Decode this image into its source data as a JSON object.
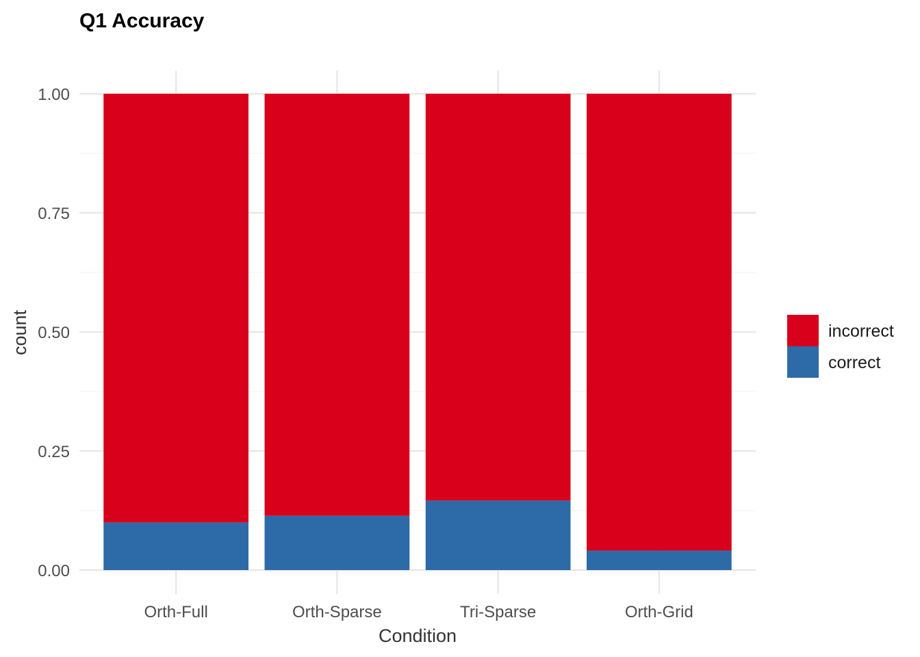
{
  "chart_data": {
    "type": "bar",
    "stacked": true,
    "title": "Q1 Accuracy",
    "xlabel": "Condition",
    "ylabel": "count",
    "categories": [
      "Orth-Full",
      "Orth-Sparse",
      "Tri-Sparse",
      "Orth-Grid"
    ],
    "series": [
      {
        "name": "correct",
        "color": "#2d6aa8",
        "values": [
          0.1,
          0.114,
          0.146,
          0.041
        ]
      },
      {
        "name": "incorrect",
        "color": "#d8001a",
        "values": [
          0.9,
          0.886,
          0.854,
          0.959
        ]
      }
    ],
    "ylim": [
      0,
      1
    ],
    "yticks": [
      0,
      0.25,
      0.5,
      0.75,
      1
    ],
    "ytick_labels": [
      "0.00",
      "0.25",
      "0.50",
      "0.75",
      "1.00"
    ],
    "grid": true,
    "legend": {
      "position": "right",
      "entries": [
        {
          "label": "incorrect",
          "color": "#d8001a"
        },
        {
          "label": "correct",
          "color": "#2d6aa8"
        }
      ]
    }
  }
}
